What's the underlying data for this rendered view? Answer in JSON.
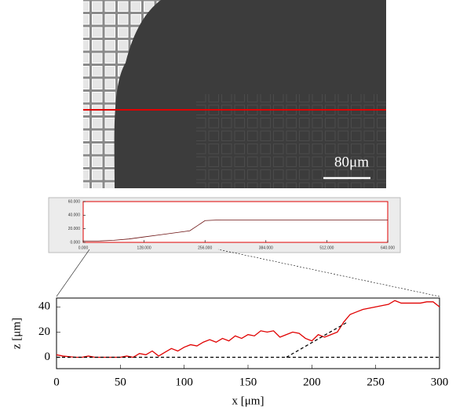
{
  "image": {
    "scale_label": "80μm"
  },
  "chart_data": [
    {
      "type": "line",
      "x": [
        0,
        32,
        64,
        96,
        128,
        160,
        192,
        224,
        256,
        288,
        320,
        352,
        384,
        416,
        448,
        480,
        512,
        544,
        576,
        608,
        640
      ],
      "series": [
        {
          "color": "#6b1010",
          "values": [
            2,
            2,
            3,
            5,
            8,
            11,
            14,
            17,
            32,
            33,
            33,
            33,
            33,
            33,
            33,
            33,
            33,
            33,
            33,
            33,
            33
          ]
        }
      ],
      "xlim": [
        0,
        640
      ],
      "xticks": [
        {
          "value": 0,
          "label": "0.000"
        },
        {
          "value": 128,
          "label": "128.000"
        },
        {
          "value": 256,
          "label": "256.000"
        },
        {
          "value": 384,
          "label": "384.000"
        },
        {
          "value": 512,
          "label": "512.000"
        },
        {
          "value": 640,
          "label": "640.000"
        }
      ],
      "ylim": [
        0,
        60
      ],
      "yticks": [
        {
          "value": 0,
          "label": "0.000"
        },
        {
          "value": 20,
          "label": "20.000"
        },
        {
          "value": 40,
          "label": "40.000"
        },
        {
          "value": 60,
          "label": "60.000"
        }
      ]
    },
    {
      "type": "line",
      "x_label": "x [μm]",
      "y_label": "z [μm]",
      "x": [
        0,
        5,
        10,
        15,
        20,
        25,
        30,
        35,
        40,
        45,
        50,
        55,
        60,
        65,
        70,
        75,
        80,
        85,
        90,
        95,
        100,
        105,
        110,
        115,
        120,
        125,
        130,
        135,
        140,
        145,
        150,
        155,
        160,
        165,
        170,
        175,
        180,
        185,
        190,
        195,
        200,
        205,
        210,
        215,
        220,
        225,
        230,
        235,
        240,
        245,
        250,
        255,
        260,
        265,
        270,
        275,
        280,
        285,
        290,
        295,
        300
      ],
      "series": [
        {
          "color": "#e00000",
          "values": [
            2,
            1,
            0.5,
            0,
            0,
            1,
            0,
            0,
            0,
            0,
            0,
            1,
            0,
            3,
            2,
            5,
            1,
            4,
            7,
            5,
            8,
            10,
            9,
            12,
            14,
            12,
            15,
            13,
            17,
            15,
            18,
            17,
            21,
            20,
            21,
            16,
            18,
            20,
            19,
            15,
            13,
            18,
            16,
            18,
            20,
            28,
            34,
            36,
            38,
            39,
            40,
            41,
            42,
            45,
            43,
            43,
            43,
            43,
            44,
            44,
            40
          ]
        },
        {
          "color": "#000000",
          "dash": true,
          "x": [
            180,
            228
          ],
          "values": [
            0,
            28
          ]
        },
        {
          "color": "#000000",
          "dash": true,
          "x": [
            0,
            300
          ],
          "values": [
            0,
            0
          ]
        }
      ],
      "xlim": [
        0,
        300
      ],
      "xticks": [
        0,
        50,
        100,
        150,
        200,
        250,
        300
      ],
      "ylim": [
        -9,
        47
      ],
      "yticks": [
        0,
        20,
        40
      ]
    }
  ]
}
